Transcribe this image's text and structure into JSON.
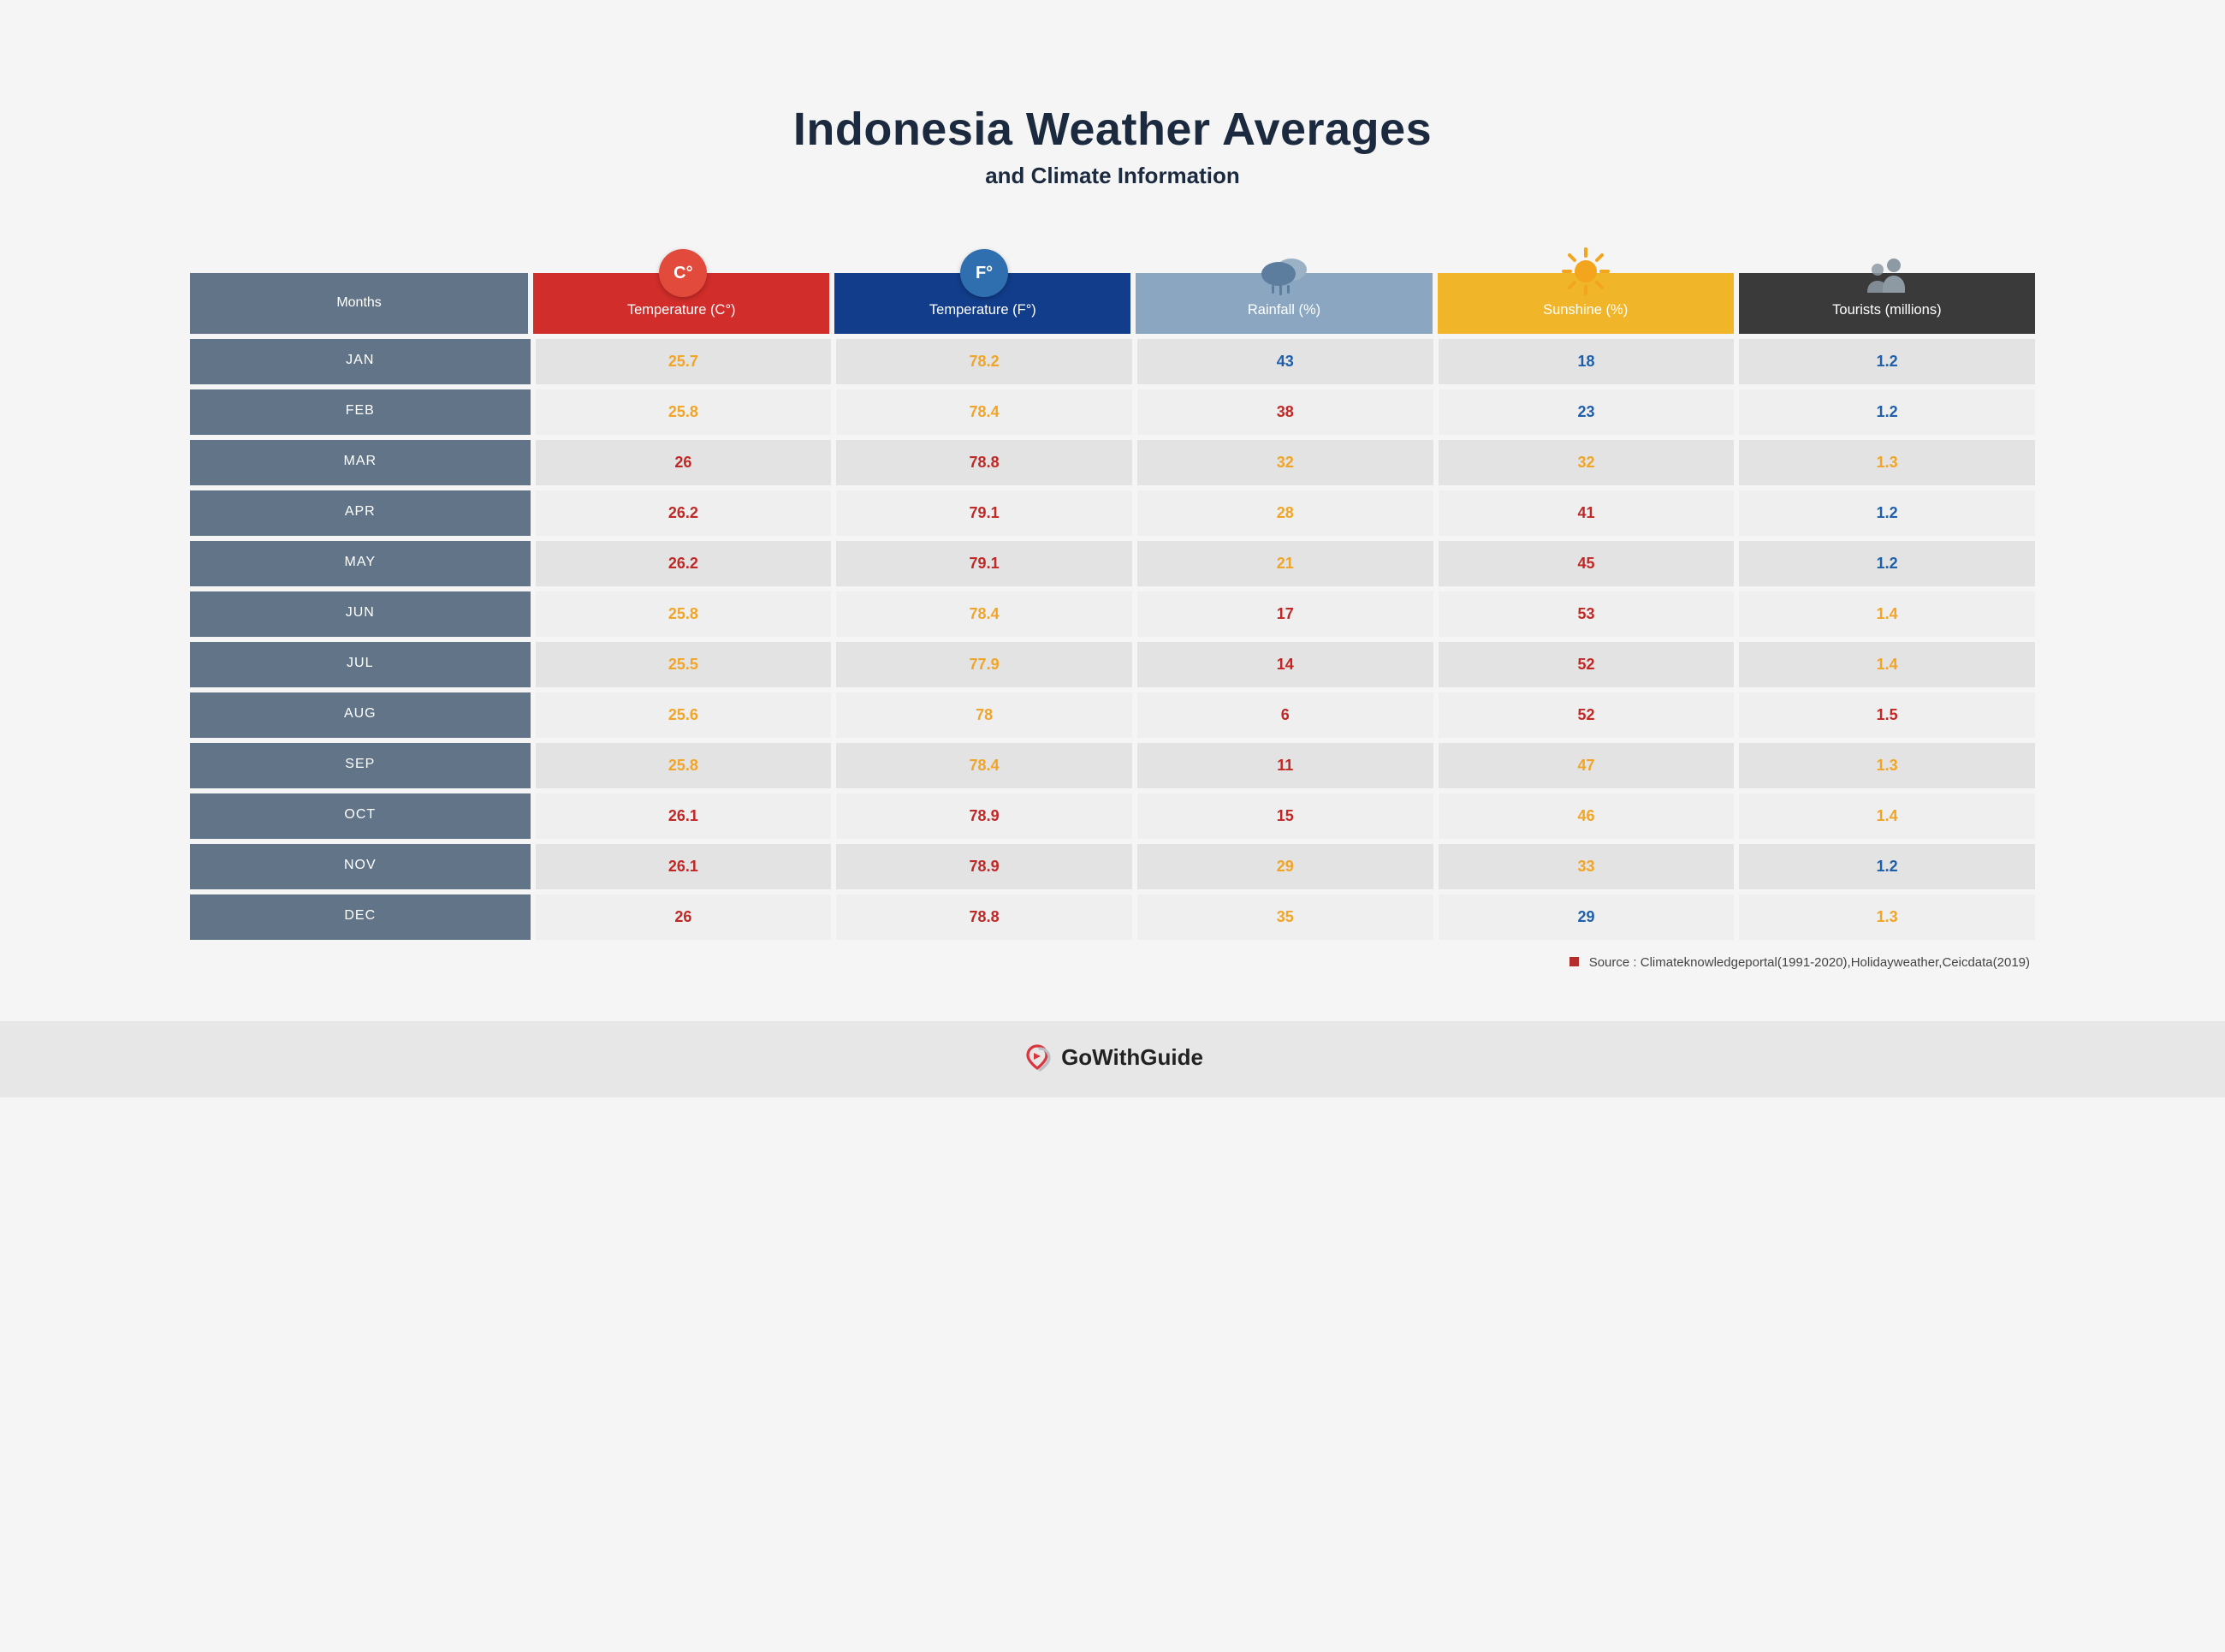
{
  "header": {
    "title": "Indonesia Weather Averages",
    "subtitle": "and Climate Information",
    "title_color": "#1c2a3f",
    "title_fontsize": 54,
    "subtitle_fontsize": 26
  },
  "page": {
    "background_color": "#f5f5f5"
  },
  "columns": {
    "months": {
      "label": "Months",
      "header_bg": "#627487",
      "header_text": "#ffffff"
    },
    "temp_c": {
      "label": "Temperature (C°)",
      "badge_text": "C°",
      "badge_bg": "#e24a3b",
      "header_bg": "#d12d2a",
      "header_text": "#ffffff"
    },
    "temp_f": {
      "label": "Temperature (F°)",
      "badge_text": "F°",
      "badge_bg": "#2f6fb0",
      "header_bg": "#113d8a",
      "header_text": "#ffffff"
    },
    "rainfall": {
      "label": "Rainfall (%)",
      "icon": "rain",
      "header_bg": "#8aa6c0",
      "header_text": "#ffffff",
      "icon_color_primary": "#5c7d9e",
      "icon_color_secondary": "#9ab1c6"
    },
    "sunshine": {
      "label": "Sunshine (%)",
      "icon": "sun",
      "header_bg": "#f1b529",
      "header_text": "#ffffff",
      "icon_color_primary": "#f3a51d"
    },
    "tourists": {
      "label": "Tourists (millions)",
      "icon": "people",
      "header_bg": "#3a3a3a",
      "header_text": "#ffffff",
      "icon_color_primary": "#8e9aa3"
    }
  },
  "row_style": {
    "month_cell_bg": "#627487",
    "month_cell_text": "#ffffff",
    "data_bg_odd": "#e3e3e3",
    "data_bg_even": "#efefef",
    "value_fontsize": 18,
    "value_fontweight": 700
  },
  "color_legend": {
    "orange": "#f0a528",
    "red": "#c02826",
    "blue": "#1f5ea8"
  },
  "rows": [
    {
      "month": "JAN",
      "cells": [
        {
          "v": "25.7",
          "c": "orange"
        },
        {
          "v": "78.2",
          "c": "orange"
        },
        {
          "v": "43",
          "c": "blue"
        },
        {
          "v": "18",
          "c": "blue"
        },
        {
          "v": "1.2",
          "c": "blue"
        }
      ]
    },
    {
      "month": "FEB",
      "cells": [
        {
          "v": "25.8",
          "c": "orange"
        },
        {
          "v": "78.4",
          "c": "orange"
        },
        {
          "v": "38",
          "c": "red"
        },
        {
          "v": "23",
          "c": "blue"
        },
        {
          "v": "1.2",
          "c": "blue"
        }
      ]
    },
    {
      "month": "MAR",
      "cells": [
        {
          "v": "26",
          "c": "red"
        },
        {
          "v": "78.8",
          "c": "red"
        },
        {
          "v": "32",
          "c": "orange"
        },
        {
          "v": "32",
          "c": "orange"
        },
        {
          "v": "1.3",
          "c": "orange"
        }
      ]
    },
    {
      "month": "APR",
      "cells": [
        {
          "v": "26.2",
          "c": "red"
        },
        {
          "v": "79.1",
          "c": "red"
        },
        {
          "v": "28",
          "c": "orange"
        },
        {
          "v": "41",
          "c": "red"
        },
        {
          "v": "1.2",
          "c": "blue"
        }
      ]
    },
    {
      "month": "MAY",
      "cells": [
        {
          "v": "26.2",
          "c": "red"
        },
        {
          "v": "79.1",
          "c": "red"
        },
        {
          "v": "21",
          "c": "orange"
        },
        {
          "v": "45",
          "c": "red"
        },
        {
          "v": "1.2",
          "c": "blue"
        }
      ]
    },
    {
      "month": "JUN",
      "cells": [
        {
          "v": "25.8",
          "c": "orange"
        },
        {
          "v": "78.4",
          "c": "orange"
        },
        {
          "v": "17",
          "c": "red"
        },
        {
          "v": "53",
          "c": "red"
        },
        {
          "v": "1.4",
          "c": "orange"
        }
      ]
    },
    {
      "month": "JUL",
      "cells": [
        {
          "v": "25.5",
          "c": "orange"
        },
        {
          "v": "77.9",
          "c": "orange"
        },
        {
          "v": "14",
          "c": "red"
        },
        {
          "v": "52",
          "c": "red"
        },
        {
          "v": "1.4",
          "c": "orange"
        }
      ]
    },
    {
      "month": "AUG",
      "cells": [
        {
          "v": "25.6",
          "c": "orange"
        },
        {
          "v": "78",
          "c": "orange"
        },
        {
          "v": "6",
          "c": "red"
        },
        {
          "v": "52",
          "c": "red"
        },
        {
          "v": "1.5",
          "c": "red"
        }
      ]
    },
    {
      "month": "SEP",
      "cells": [
        {
          "v": "25.8",
          "c": "orange"
        },
        {
          "v": "78.4",
          "c": "orange"
        },
        {
          "v": "11",
          "c": "red"
        },
        {
          "v": "47",
          "c": "orange"
        },
        {
          "v": "1.3",
          "c": "orange"
        }
      ]
    },
    {
      "month": "OCT",
      "cells": [
        {
          "v": "26.1",
          "c": "red"
        },
        {
          "v": "78.9",
          "c": "red"
        },
        {
          "v": "15",
          "c": "red"
        },
        {
          "v": "46",
          "c": "orange"
        },
        {
          "v": "1.4",
          "c": "orange"
        }
      ]
    },
    {
      "month": "NOV",
      "cells": [
        {
          "v": "26.1",
          "c": "red"
        },
        {
          "v": "78.9",
          "c": "red"
        },
        {
          "v": "29",
          "c": "orange"
        },
        {
          "v": "33",
          "c": "orange"
        },
        {
          "v": "1.2",
          "c": "blue"
        }
      ]
    },
    {
      "month": "DEC",
      "cells": [
        {
          "v": "26",
          "c": "red"
        },
        {
          "v": "78.8",
          "c": "red"
        },
        {
          "v": "35",
          "c": "orange"
        },
        {
          "v": "29",
          "c": "blue"
        },
        {
          "v": "1.3",
          "c": "orange"
        }
      ]
    }
  ],
  "source": {
    "marker_color": "#b42d2a",
    "text": "Source : Climateknowledgeportal(1991-2020),Holidayweather,Ceicdata(2019)"
  },
  "footer": {
    "brand": "GoWithGuide",
    "bar_bg": "#e7e7e7",
    "logo_red": "#d9363e",
    "logo_gray": "#b9bfc4"
  }
}
